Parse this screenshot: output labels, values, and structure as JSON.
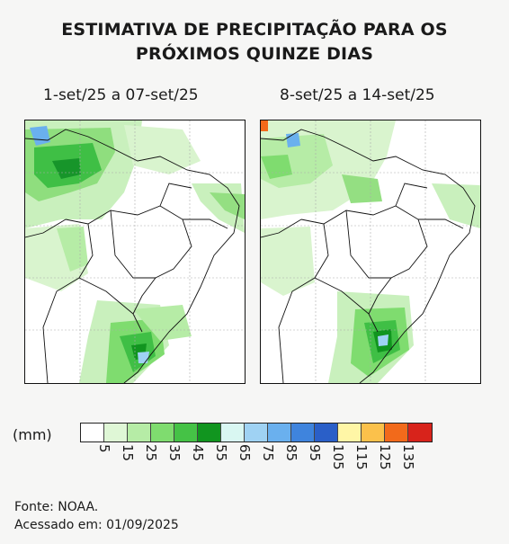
{
  "title_line1": "ESTIMATIVA DE PRECIPITAÇÃO PARA OS",
  "title_line2": "PRÓXIMOS QUINZE DIAS",
  "maps": [
    {
      "period": "1-set/25 a 07-set/25"
    },
    {
      "period": "8-set/25 a 14-set/25"
    }
  ],
  "legend": {
    "unit": "(mm)",
    "ticks": [
      "5",
      "15",
      "25",
      "35",
      "45",
      "55",
      "65",
      "75",
      "85",
      "95",
      "105",
      "115",
      "125",
      "135"
    ],
    "colors": [
      "#ffffff",
      "#dff7d6",
      "#b6eca6",
      "#7fdc6f",
      "#45c246",
      "#11951f",
      "#d9f7f2",
      "#9fd2f3",
      "#6ab0ee",
      "#3f84dd",
      "#2a5fc8",
      "#fff6a6",
      "#fbc14b",
      "#f26a1b",
      "#d8231b"
    ]
  },
  "source": {
    "line1": "Fonte: NOAA.",
    "line2": "Acessado em: 01/09/2025"
  }
}
